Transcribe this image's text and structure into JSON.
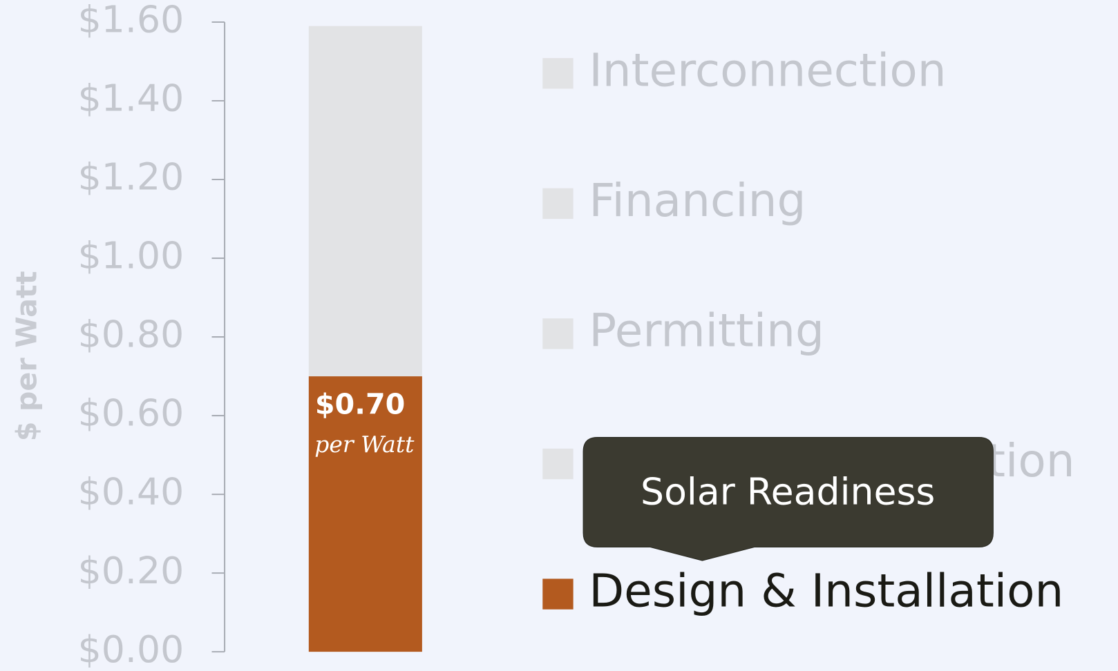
{
  "chart_data": {
    "type": "stacked_bar",
    "y_label": "$ per Watt",
    "categories": [
      null
    ],
    "series": [
      {
        "name": "Design & Installation",
        "color": "#b35a1f",
        "values": [
          0.7
        ],
        "value_labels": [
          "$0.70"
        ],
        "value_sublabel": "per Watt"
      },
      {
        "color": "#e2e3e5",
        "values": [
          0.89
        ]
      }
    ],
    "ylim": [
      0,
      1.6
    ],
    "yticks": [
      {
        "value": 0,
        "label": "$0.00"
      },
      {
        "value": 0.2,
        "label": "$0.20"
      },
      {
        "value": 0.4,
        "label": "$0.40"
      },
      {
        "value": 0.6,
        "label": "$0.60"
      },
      {
        "value": 0.8,
        "label": "$0.80"
      },
      {
        "value": 1.0,
        "label": "$1.00"
      },
      {
        "value": 1.2,
        "label": "$1.20"
      },
      {
        "value": 1.4,
        "label": "$1.40"
      },
      {
        "value": 1.6,
        "label": "$1.60"
      }
    ],
    "legend": [
      {
        "name": "Interconnection",
        "color": "#e2e3e5",
        "active": false
      },
      {
        "name": "Financing",
        "color": "#e2e3e5",
        "active": false
      },
      {
        "name": "Permitting",
        "color": "#e2e3e5",
        "active": false
      },
      {
        "name": "Customer Acquisition",
        "color": "#e2e3e5",
        "active": false
      },
      {
        "name": "Design & Installation",
        "color": "#b35a1f",
        "active": true
      }
    ],
    "tooltip": "Solar Readiness"
  }
}
